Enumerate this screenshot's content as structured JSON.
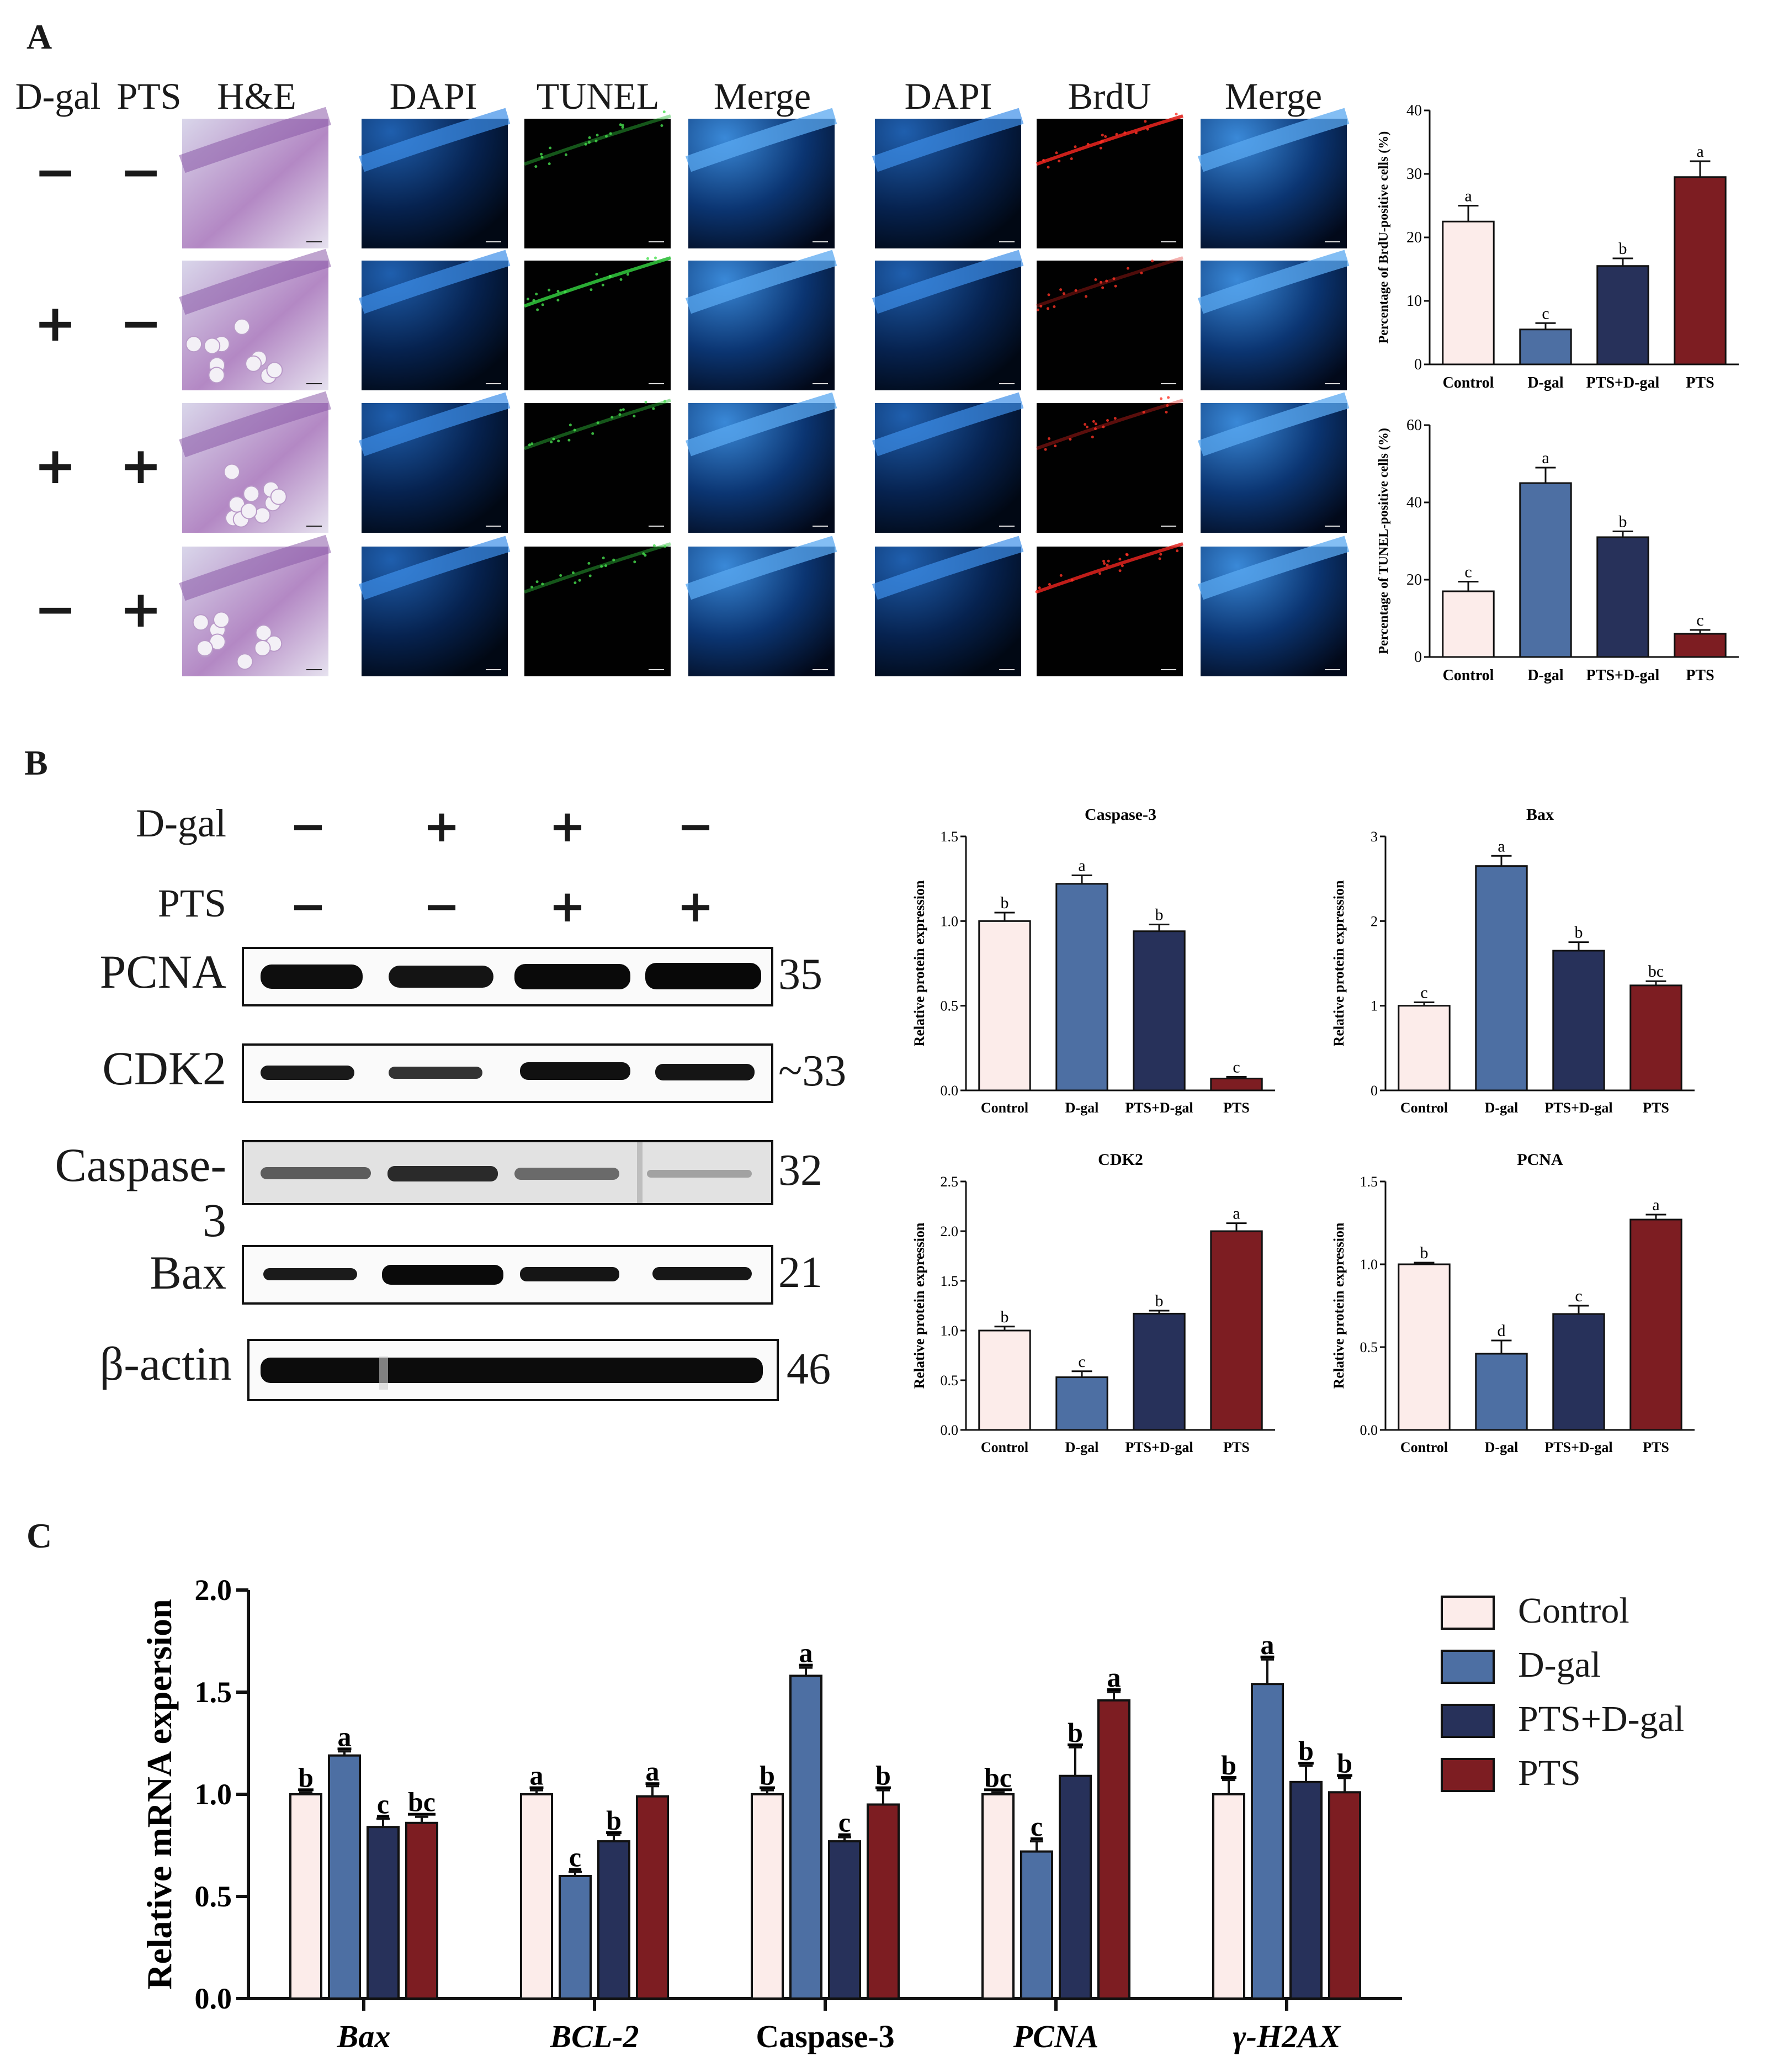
{
  "panels": {
    "a": "A",
    "b": "B",
    "c": "C"
  },
  "panelA": {
    "headers": {
      "dgal": "D-gal",
      "pts": "PTS",
      "he": "H&E",
      "dapi1": "DAPI",
      "tunel": "TUNEL",
      "merge1": "Merge",
      "dapi2": "DAPI",
      "brdu": "BrdU",
      "merge2": "Merge"
    },
    "rows": [
      {
        "dgal": "−",
        "pts": "−"
      },
      {
        "dgal": "+",
        "pts": "−"
      },
      {
        "dgal": "+",
        "pts": "+"
      },
      {
        "dgal": "−",
        "pts": "+"
      }
    ]
  },
  "panelB": {
    "row_labels": {
      "dgal": "D-gal",
      "pts": "PTS"
    },
    "dgal_signs": [
      "−",
      "+",
      "+",
      "−"
    ],
    "pts_signs": [
      "−",
      "−",
      "+",
      "+"
    ],
    "blots": [
      {
        "name": "PCNA",
        "kda": "35"
      },
      {
        "name": "CDK2",
        "kda": "~33"
      },
      {
        "name": "Caspase-3",
        "kda": "32"
      },
      {
        "name": "Bax",
        "kda": "21"
      },
      {
        "name": "β-actin",
        "kda": "46"
      }
    ]
  },
  "legend": [
    "Control",
    "D-gal",
    "PTS+D-gal",
    "PTS"
  ],
  "colors": {
    "control": "#fcecea",
    "dgal": "#4d6fa3",
    "ptsdgal": "#27315a",
    "pts": "#7d1d22"
  },
  "chart_data": [
    {
      "id": "brdu",
      "type": "bar",
      "title": "",
      "ylabel": "Percentage of BrdU-positive cells (%)",
      "xlabel": "",
      "ylim": [
        0,
        40
      ],
      "yticks": [
        0,
        10,
        20,
        30,
        40
      ],
      "yticklabels": [
        "0",
        "10",
        "20",
        "30",
        "40"
      ],
      "categories": [
        "Control",
        "D-gal",
        "PTS+D-gal",
        "PTS"
      ],
      "values": [
        22.5,
        5.5,
        15.5,
        29.5
      ],
      "errors": [
        2.5,
        1.0,
        1.2,
        2.5
      ],
      "letters": [
        "a",
        "c",
        "b",
        "a"
      ]
    },
    {
      "id": "tunel",
      "type": "bar",
      "title": "",
      "ylabel": "Percentage of TUNEL-positive cells (%)",
      "xlabel": "",
      "ylim": [
        0,
        60
      ],
      "yticks": [
        0,
        20,
        40,
        60
      ],
      "yticklabels": [
        "0",
        "20",
        "40",
        "60"
      ],
      "categories": [
        "Control",
        "D-gal",
        "PTS+D-gal",
        "PTS"
      ],
      "values": [
        17,
        45,
        31,
        6
      ],
      "errors": [
        2.5,
        4.0,
        1.5,
        1.0
      ],
      "letters": [
        "c",
        "a",
        "b",
        "c"
      ]
    },
    {
      "id": "casp3",
      "type": "bar",
      "title": "Caspase-3",
      "ylabel": "Relative protein expression",
      "xlabel": "",
      "ylim": [
        0,
        1.5
      ],
      "yticks": [
        0,
        0.5,
        1.0,
        1.5
      ],
      "yticklabels": [
        "0.0",
        "0.5",
        "1.0",
        "1.5"
      ],
      "categories": [
        "Control",
        "D-gal",
        "PTS+D-gal",
        "PTS"
      ],
      "values": [
        1.0,
        1.22,
        0.94,
        0.07
      ],
      "errors": [
        0.05,
        0.05,
        0.04,
        0.01
      ],
      "letters": [
        "b",
        "a",
        "b",
        "c"
      ]
    },
    {
      "id": "bax",
      "type": "bar",
      "title": "Bax",
      "ylabel": "Relative protein expression",
      "xlabel": "",
      "ylim": [
        0,
        3
      ],
      "yticks": [
        0,
        1,
        2,
        3
      ],
      "yticklabels": [
        "0",
        "1",
        "2",
        "3"
      ],
      "categories": [
        "Control",
        "D-gal",
        "PTS+D-gal",
        "PTS"
      ],
      "values": [
        1.0,
        2.65,
        1.65,
        1.24
      ],
      "errors": [
        0.04,
        0.12,
        0.1,
        0.05
      ],
      "letters": [
        "c",
        "a",
        "b",
        "bc"
      ]
    },
    {
      "id": "cdk2",
      "type": "bar",
      "title": "CDK2",
      "ylabel": "Relative protein expression",
      "xlabel": "",
      "ylim": [
        0,
        2.5
      ],
      "yticks": [
        0,
        0.5,
        1.0,
        1.5,
        2.0,
        2.5
      ],
      "yticklabels": [
        "0.0",
        "0.5",
        "1.0",
        "1.5",
        "2.0",
        "2.5"
      ],
      "categories": [
        "Control",
        "D-gal",
        "PTS+D-gal",
        "PTS"
      ],
      "values": [
        1.0,
        0.53,
        1.17,
        2.0
      ],
      "errors": [
        0.04,
        0.06,
        0.03,
        0.08
      ],
      "letters": [
        "b",
        "c",
        "b",
        "a"
      ]
    },
    {
      "id": "pcna",
      "type": "bar",
      "title": "PCNA",
      "ylabel": "Relative protein expression",
      "xlabel": "",
      "ylim": [
        0,
        1.5
      ],
      "yticks": [
        0,
        0.5,
        1.0,
        1.5
      ],
      "yticklabels": [
        "0.0",
        "0.5",
        "1.0",
        "1.5"
      ],
      "categories": [
        "Control",
        "D-gal",
        "PTS+D-gal",
        "PTS"
      ],
      "values": [
        1.0,
        0.46,
        0.7,
        1.27
      ],
      "errors": [
        0.01,
        0.08,
        0.05,
        0.03
      ],
      "letters": [
        "b",
        "d",
        "c",
        "a"
      ]
    },
    {
      "id": "mrna",
      "type": "bar",
      "title": "",
      "ylabel": "Relative mRNA expersion",
      "xlabel": "",
      "ylim": [
        0,
        2.0
      ],
      "yticks": [
        0,
        0.5,
        1.0,
        1.5,
        2.0
      ],
      "yticklabels": [
        "0.0",
        "0.5",
        "1.0",
        "1.5",
        "2.0"
      ],
      "categories": [
        "Bax",
        "BCL-2",
        "Caspase-3",
        "PCNA",
        "γ-H2AX"
      ],
      "series": [
        {
          "name": "Control",
          "values": [
            1.0,
            1.0,
            1.0,
            1.0,
            1.0
          ],
          "errors": [
            0.01,
            0.02,
            0.02,
            0.01,
            0.07
          ],
          "letters": [
            "b",
            "a",
            "b",
            "bc",
            "b"
          ]
        },
        {
          "name": "D-gal",
          "values": [
            1.19,
            0.6,
            1.58,
            0.72,
            1.54
          ],
          "errors": [
            0.02,
            0.02,
            0.04,
            0.05,
            0.12
          ],
          "letters": [
            "a",
            "c",
            "a",
            "c",
            "a"
          ]
        },
        {
          "name": "PTS+D-gal",
          "values": [
            0.84,
            0.77,
            0.77,
            1.09,
            1.06
          ],
          "errors": [
            0.04,
            0.03,
            0.02,
            0.14,
            0.08
          ],
          "letters": [
            "c",
            "b",
            "c",
            "b",
            "b"
          ]
        },
        {
          "name": "PTS",
          "values": [
            0.86,
            0.99,
            0.95,
            1.46,
            1.01
          ],
          "errors": [
            0.03,
            0.05,
            0.07,
            0.04,
            0.07
          ],
          "letters": [
            "bc",
            "a",
            "b",
            "a",
            "b"
          ]
        }
      ]
    }
  ]
}
